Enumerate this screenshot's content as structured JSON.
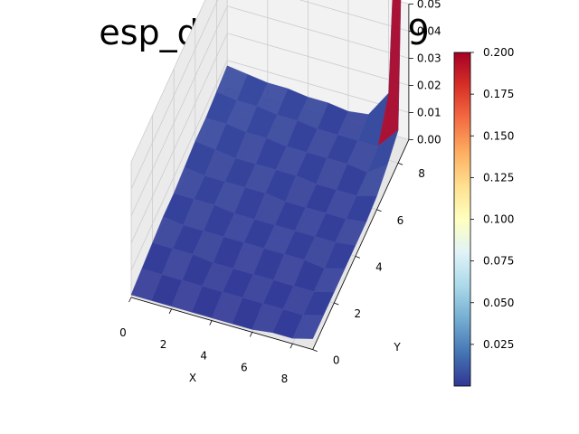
{
  "chart_data": {
    "type": "surface3d",
    "title": "esp_decay = 0.999",
    "xlabel": "X",
    "ylabel": "Y",
    "zlabel": "",
    "x_ticks": [
      "0",
      "2",
      "4",
      "6",
      "8"
    ],
    "y_ticks": [
      "0",
      "2",
      "4",
      "6",
      "8"
    ],
    "z_ticks": [
      "0.00",
      "0.01",
      "0.02",
      "0.03",
      "0.04",
      "0.05"
    ],
    "xlim": [
      0,
      9
    ],
    "ylim": [
      0,
      9
    ],
    "zlim": [
      0,
      0.05
    ],
    "grid": true,
    "colormap": "RdYlBu_r",
    "colorbar": {
      "min": 0.0,
      "max": 0.2,
      "ticks": [
        "0.025",
        "0.050",
        "0.075",
        "0.100",
        "0.125",
        "0.150",
        "0.175",
        "0.200"
      ]
    },
    "colors": {
      "surface": "#313695",
      "peak": "#a50026",
      "pane_back": "#f2f2f2",
      "pane_side": "#ebebeb",
      "pane_floor": "#e6e6e6",
      "grid": "#cccccc"
    },
    "surface": {
      "x": [
        0,
        1,
        2,
        3,
        4,
        5,
        6,
        7,
        8,
        9
      ],
      "y": [
        0,
        1,
        2,
        3,
        4,
        5,
        6,
        7,
        8,
        9
      ],
      "z_rows_by_y": [
        [
          0.001,
          0.001,
          0.001,
          0.001,
          0.001,
          0.001,
          0.001,
          0.002,
          0.002,
          0.004
        ],
        [
          0.002,
          0.002,
          0.002,
          0.002,
          0.002,
          0.002,
          0.002,
          0.002,
          0.002,
          0.004
        ],
        [
          0.003,
          0.003,
          0.003,
          0.002,
          0.002,
          0.002,
          0.002,
          0.002,
          0.002,
          0.004
        ],
        [
          0.004,
          0.003,
          0.003,
          0.003,
          0.003,
          0.003,
          0.003,
          0.003,
          0.002,
          0.004
        ],
        [
          0.004,
          0.004,
          0.004,
          0.003,
          0.003,
          0.003,
          0.003,
          0.003,
          0.003,
          0.004
        ],
        [
          0.005,
          0.004,
          0.004,
          0.004,
          0.004,
          0.003,
          0.003,
          0.003,
          0.003,
          0.004
        ],
        [
          0.006,
          0.005,
          0.004,
          0.004,
          0.004,
          0.004,
          0.003,
          0.003,
          0.003,
          0.005
        ],
        [
          0.006,
          0.006,
          0.005,
          0.005,
          0.004,
          0.004,
          0.004,
          0.004,
          0.003,
          0.008
        ],
        [
          0.007,
          0.006,
          0.006,
          0.005,
          0.005,
          0.004,
          0.004,
          0.004,
          0.004,
          0.012
        ],
        [
          0.008,
          0.007,
          0.006,
          0.006,
          0.005,
          0.005,
          0.004,
          0.005,
          0.015,
          0.2
        ]
      ]
    }
  }
}
